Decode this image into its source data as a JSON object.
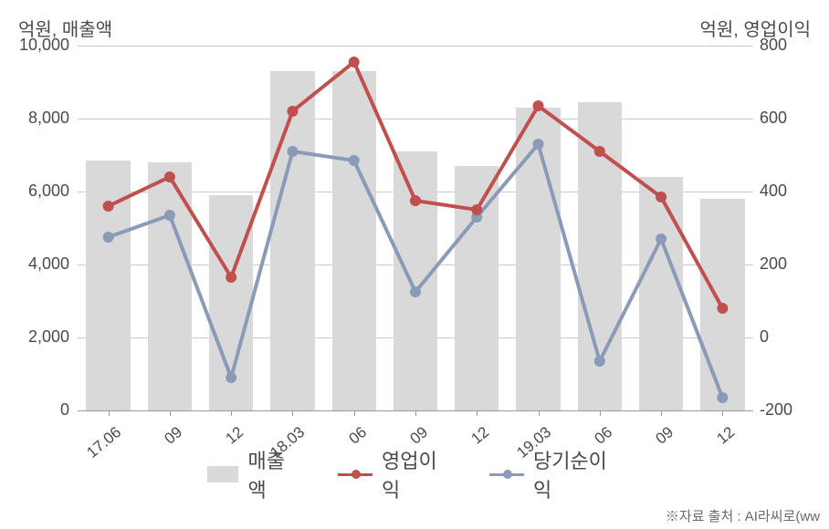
{
  "chart": {
    "type": "bar-line-combo",
    "y_axis_left_label": "억원, 매출액",
    "y_axis_right_label": "억원, 영업이익",
    "left_axis": {
      "min": 0,
      "max": 10000,
      "ticks": [
        0,
        2000,
        4000,
        6000,
        8000,
        10000
      ],
      "tick_labels": [
        "0",
        "2,000",
        "4,000",
        "6,000",
        "8,000",
        "10,000"
      ]
    },
    "right_axis": {
      "min": -200,
      "max": 800,
      "ticks": [
        -200,
        0,
        200,
        400,
        600,
        800
      ],
      "tick_labels": [
        "-200",
        "0",
        "200",
        "400",
        "600",
        "800"
      ]
    },
    "categories": [
      "17.06",
      "09",
      "12",
      "18.03",
      "06",
      "09",
      "12",
      "19.03",
      "06",
      "09",
      "12"
    ],
    "bars": {
      "label": "매출액",
      "values": [
        6850,
        6800,
        5900,
        9300,
        9300,
        7100,
        6700,
        8300,
        8450,
        6400,
        5800
      ],
      "color": "#d9d9d9",
      "width_ratio": 0.72
    },
    "line1": {
      "label": "영업이익",
      "values": [
        360,
        440,
        165,
        620,
        755,
        375,
        350,
        635,
        510,
        385,
        80
      ],
      "color": "#c0504d",
      "line_width": 4,
      "marker_size": 6
    },
    "line2": {
      "label": "당기순이익",
      "values": [
        275,
        335,
        -110,
        510,
        485,
        125,
        330,
        530,
        -65,
        270,
        -165
      ],
      "color": "#8a9bb8",
      "line_width": 4,
      "marker_size": 6
    },
    "background_color": "#ffffff",
    "grid_color": "#cccccc",
    "text_color": "#4a4a4a"
  },
  "legend": {
    "item1": "매출액",
    "item2": "영업이익",
    "item3": "당기순이익"
  },
  "source_text": "※자료 출처 : AI라씨로(ww"
}
